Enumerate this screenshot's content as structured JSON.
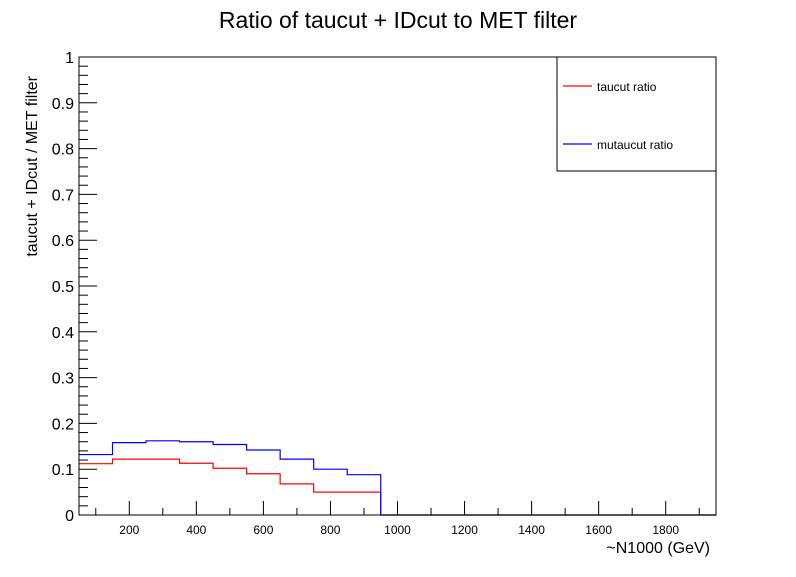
{
  "chart_data": {
    "type": "line",
    "step": true,
    "title": "Ratio of taucut + IDcut to MET filter",
    "xlabel": "~N1000 (GeV)",
    "ylabel": "taucut + IDcut / MET filter",
    "xlim": [
      50,
      1950
    ],
    "ylim": [
      0,
      1
    ],
    "x_ticks": [
      200,
      400,
      600,
      800,
      1000,
      1200,
      1400,
      1600,
      1800
    ],
    "y_ticks": [
      "0",
      "0.1",
      "0.2",
      "0.3",
      "0.4",
      "0.5",
      "0.6",
      "0.7",
      "0.8",
      "0.9",
      "1"
    ],
    "bin_edges": [
      50,
      150,
      250,
      350,
      450,
      550,
      650,
      750,
      850,
      950,
      1050,
      1150,
      1250,
      1350,
      1450,
      1550,
      1650,
      1750,
      1850,
      1950
    ],
    "series": [
      {
        "name": "taucut ratio",
        "color": "#ff0000",
        "values": [
          0.112,
          0.122,
          0.122,
          0.113,
          0.102,
          0.09,
          0.068,
          0.05,
          0.05,
          0,
          0,
          0,
          0,
          0,
          0,
          0,
          0,
          0,
          0
        ]
      },
      {
        "name": "mutaucut ratio",
        "color": "#0000ff",
        "values": [
          0.132,
          0.158,
          0.162,
          0.16,
          0.154,
          0.142,
          0.122,
          0.1,
          0.088,
          0,
          0,
          0,
          0,
          0,
          0,
          0,
          0,
          0,
          0
        ]
      }
    ],
    "legend_position": "top-right",
    "grid": false
  }
}
